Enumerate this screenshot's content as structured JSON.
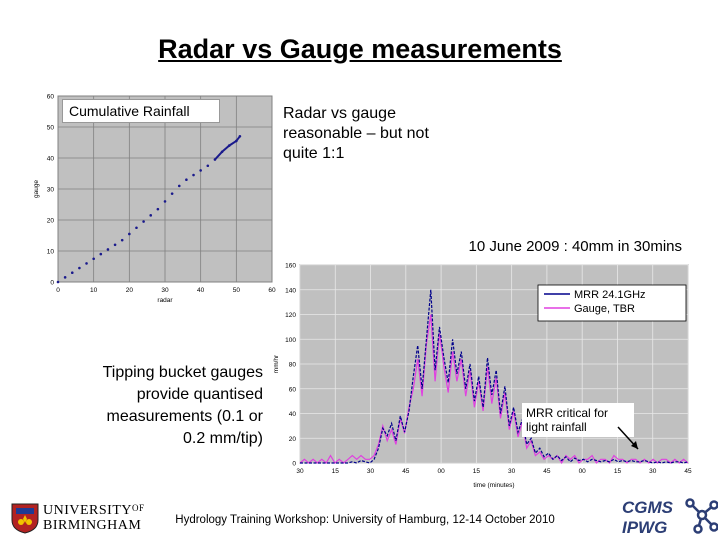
{
  "slide": {
    "title": "Radar vs Gauge measurements",
    "note_right": "Radar vs gauge reasonable – but not quite 1:1",
    "note_left": "Tipping bucket gauges provide quantised measurements (0.1 or 0.2 mm/tip)",
    "footer": "Hydrology Training Workshop: University of Hamburg, 12-14 October 2010",
    "logos": {
      "university_line1": "UNIVERSITY",
      "university_of": "OF",
      "university_line2": "BIRMINGHAM",
      "cgms": "CGMS",
      "ipwg": "IPWG"
    }
  },
  "colors": {
    "scatter_point": "#1a1a8c",
    "plot_bg": "#c0c0c0",
    "mrr_line": "#00008b",
    "gauge_line": "#e040e0"
  },
  "chart_data": [
    {
      "type": "scatter",
      "title": "Cumulative Rainfall",
      "xlabel": "radar",
      "ylabel": "gauge",
      "xlim": [
        0,
        60
      ],
      "ylim": [
        0,
        60
      ],
      "xticks": [
        0,
        10,
        20,
        30,
        40,
        50,
        60
      ],
      "yticks": [
        0,
        10,
        20,
        30,
        40,
        50,
        60
      ],
      "grid": true,
      "x": [
        0,
        2,
        4,
        6,
        8,
        10,
        12,
        14,
        16,
        18,
        20,
        22,
        24,
        26,
        28,
        30,
        32,
        34,
        36,
        38,
        40,
        42,
        44,
        46,
        48,
        50,
        51
      ],
      "y": [
        0,
        1.5,
        3.0,
        4.5,
        6.0,
        7.5,
        9.0,
        10.5,
        12.0,
        13.5,
        15.5,
        17.5,
        19.5,
        21.5,
        23.5,
        26.0,
        28.5,
        31.0,
        33.0,
        34.5,
        36.0,
        37.5,
        39.5,
        42.0,
        44.0,
        45.5,
        47.0
      ]
    },
    {
      "type": "line",
      "title": "10 June 2009 : 40mm in 30mins",
      "xlabel": "time (minutes)",
      "ylabel": "mm/hr",
      "ylim": [
        0,
        160
      ],
      "yticks": [
        0,
        20,
        40,
        60,
        80,
        100,
        120,
        140,
        160
      ],
      "xtick_labels": [
        "30",
        "15",
        "30",
        "45",
        "00",
        "15",
        "30",
        "45",
        "00",
        "15",
        "30",
        "45"
      ],
      "grid": true,
      "legend_position": "top-right",
      "annotation": "MRR critical for light rainfall",
      "series": [
        {
          "name": "MRR 24.1GHz",
          "color": "#00008b",
          "values": [
            0,
            0,
            0,
            0,
            0,
            0,
            0,
            0,
            0,
            0,
            0,
            0,
            1,
            0,
            2,
            1,
            0,
            3,
            12,
            28,
            22,
            32,
            18,
            38,
            25,
            42,
            70,
            95,
            60,
            100,
            140,
            75,
            110,
            85,
            65,
            100,
            72,
            90,
            60,
            80,
            50,
            70,
            45,
            85,
            55,
            75,
            40,
            62,
            30,
            45,
            25,
            35,
            15,
            20,
            8,
            12,
            5,
            8,
            3,
            6,
            2,
            5,
            1,
            4,
            2,
            3,
            1,
            3,
            2,
            1,
            2,
            1,
            3,
            1,
            2,
            1,
            2,
            1,
            1,
            2,
            1,
            0,
            1,
            0,
            1,
            0,
            1,
            1,
            0,
            1
          ]
        },
        {
          "name": "Gauge, TBR",
          "color": "#e040e0",
          "values": [
            0,
            3,
            0,
            3,
            0,
            3,
            0,
            6,
            0,
            3,
            0,
            3,
            6,
            3,
            6,
            3,
            3,
            6,
            15,
            30,
            18,
            27,
            15,
            36,
            24,
            45,
            60,
            84,
            54,
            96,
            120,
            66,
            105,
            78,
            57,
            90,
            66,
            84,
            54,
            75,
            45,
            66,
            42,
            78,
            48,
            69,
            36,
            57,
            27,
            42,
            21,
            33,
            12,
            18,
            6,
            9,
            3,
            6,
            3,
            6,
            0,
            6,
            3,
            6,
            0,
            3,
            3,
            6,
            0,
            3,
            3,
            0,
            6,
            3,
            3,
            0,
            3,
            3,
            0,
            3,
            0,
            3,
            0,
            3,
            3,
            0,
            3,
            0,
            3,
            0
          ]
        }
      ]
    }
  ]
}
